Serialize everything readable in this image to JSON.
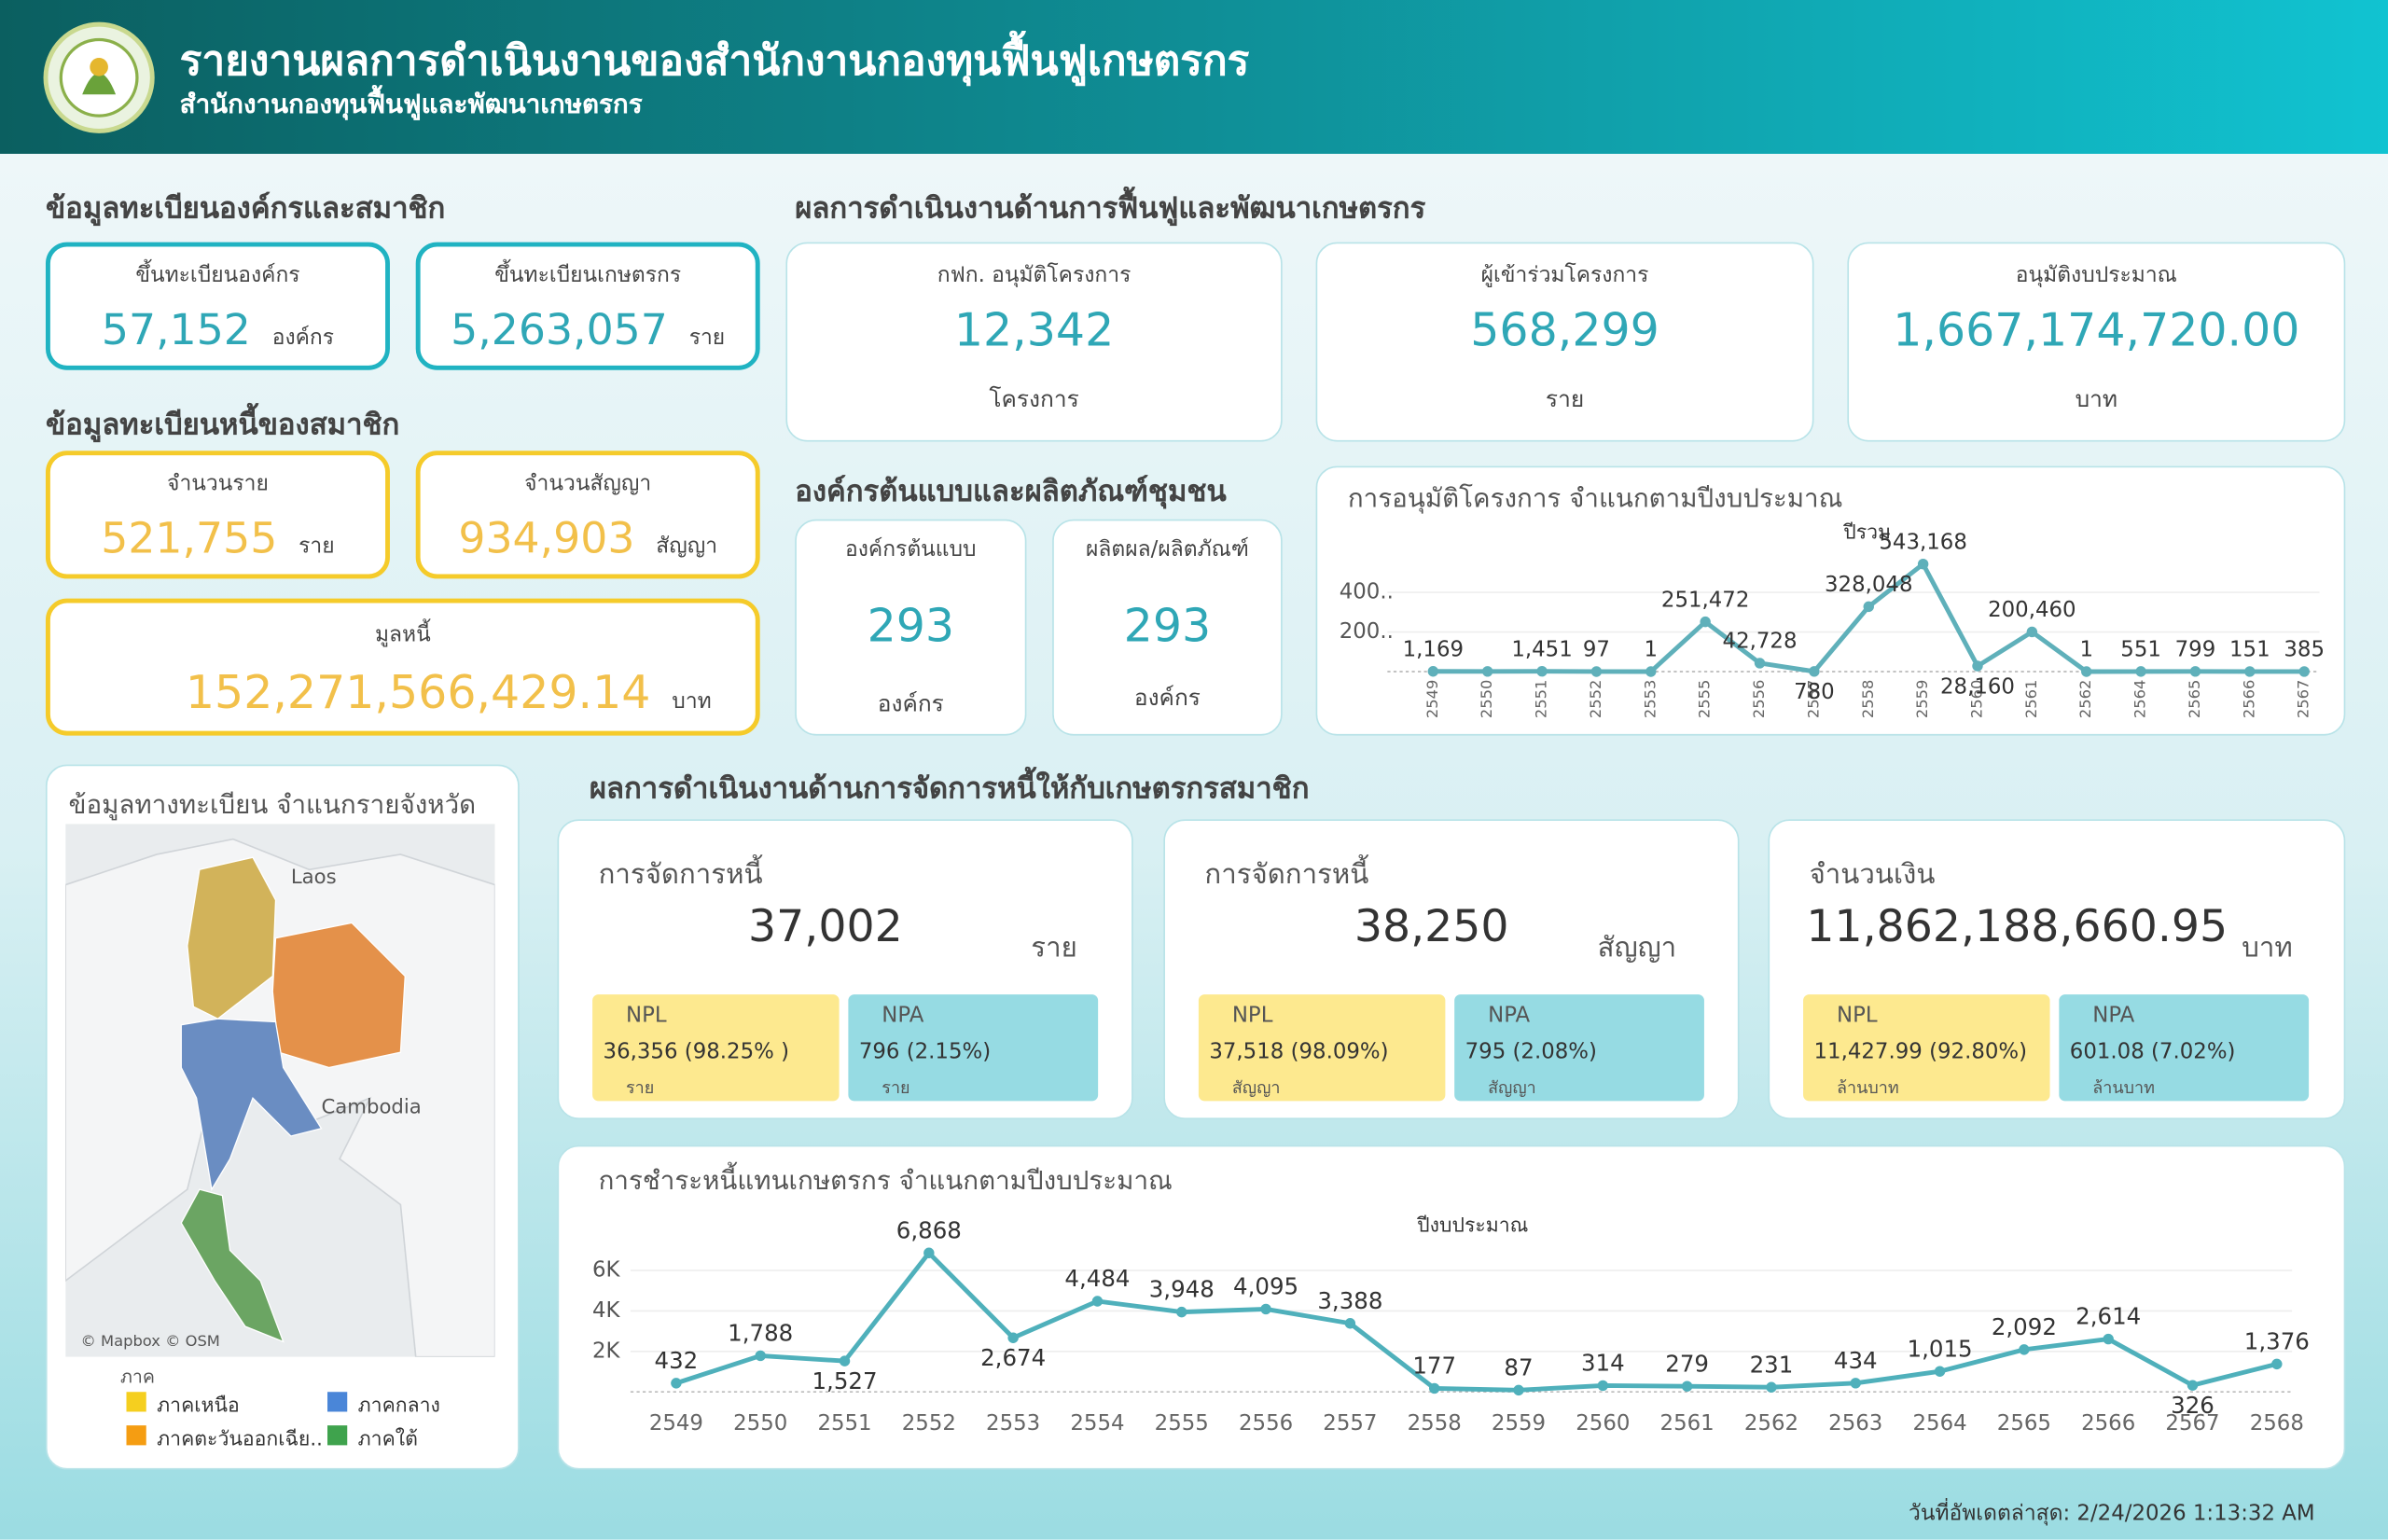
{
  "header": {
    "title": "รายงานผลการดำเนินงานของสำนักงานกองทุนฟื้นฟูเกษตรกร",
    "subtitle": "สำนักงานกองทุนฟื้นฟูและพัฒนาเกษตรกร"
  },
  "registration": {
    "title": "ข้อมูลทะเบียนองค์กรและสมาชิก",
    "cards": [
      {
        "label": "ขึ้นทะเบียนองค์กร",
        "value": "57,152",
        "unit": "องค์กร"
      },
      {
        "label": "ขึ้นทะเบียนเกษตรกร",
        "value": "5,263,057",
        "unit": "ราย"
      }
    ]
  },
  "debt_registry": {
    "title": "ข้อมูลทะเบียนหนี้ของสมาชิก",
    "cards": [
      {
        "label": "จำนวนราย",
        "value": "521,755",
        "unit": "ราย"
      },
      {
        "label": "จำนวนสัญญา",
        "value": "934,903",
        "unit": "สัญญา"
      },
      {
        "label": "มูลหนี้",
        "value": "152,271,566,429.14",
        "unit": "บาท"
      }
    ]
  },
  "rehabilitation": {
    "title": "ผลการดำเนินงานด้านการฟื้นฟูและพัฒนาเกษตรกร",
    "cards": [
      {
        "label": "กฟก. อนุมัติโครงการ",
        "value": "12,342",
        "unit": "โครงการ"
      },
      {
        "label": "ผู้เข้าร่วมโครงการ",
        "value": "568,299",
        "unit": "ราย"
      },
      {
        "label": "อนุมัติงบประมาณ",
        "value": "1,667,174,720.00",
        "unit": "บาท"
      }
    ]
  },
  "model_org": {
    "title": "องค์กรต้นแบบและผลิตภัณฑ์ชุมชน",
    "cards": [
      {
        "label": "องค์กรต้นแบบ",
        "value": "293",
        "unit": "องค์กร"
      },
      {
        "label": "ผลิตผล/ผลิตภัณฑ์",
        "value": "293",
        "unit": "องค์กร"
      }
    ]
  },
  "debt_management": {
    "title": "ผลการดำเนินงานด้านการจัดการหนี้ให้กับเกษตรกรสมาชิก",
    "cards": [
      {
        "label": "การจัดการหนี้",
        "value": "37,002",
        "unit": "ราย",
        "npl": {
          "label": "NPL",
          "value": "36,356 (98.25% )",
          "unit": "ราย"
        },
        "npa": {
          "label": "NPA",
          "value": "796 (2.15%)",
          "unit": "ราย"
        }
      },
      {
        "label": "การจัดการหนี้",
        "value": "38,250",
        "unit": "สัญญา",
        "npl": {
          "label": "NPL",
          "value": "37,518 (98.09%)",
          "unit": "สัญญา"
        },
        "npa": {
          "label": "NPA",
          "value": "795 (2.08%)",
          "unit": "สัญญา"
        }
      },
      {
        "label": "จำนวนเงิน",
        "value": "11,862,188,660.95",
        "unit": "บาท",
        "npl": {
          "label": "NPL",
          "value": "11,427.99 (92.80%)",
          "unit": "ล้านบาท"
        },
        "npa": {
          "label": "NPA",
          "value": "601.08 (7.02%)",
          "unit": "ล้านบาท"
        }
      }
    ]
  },
  "map": {
    "title": "ข้อมูลทางทะเบียน จำแนกรายจังหวัด",
    "labels": [
      "Laos",
      "Cambodia"
    ],
    "credit": "© Mapbox © OSM",
    "legend": {
      "title": "ภาค",
      "items": [
        {
          "name": "ภาคเหนือ",
          "color": "#f5cf1f"
        },
        {
          "name": "ภาคกลาง",
          "color": "#4a86d8"
        },
        {
          "name": "ภาคตะวันออกเฉีย..",
          "color": "#f59d12"
        },
        {
          "name": "ภาคใต้",
          "color": "#3fa34d"
        }
      ]
    }
  },
  "chart_data": [
    {
      "type": "line",
      "title": "การอนุมัติโครงการ จำแนกตามปีงบประมาณ",
      "x_label": "ปีรวม",
      "color": "#5fb0ba",
      "categories": [
        "2549",
        "2550",
        "2551",
        "2552",
        "2553",
        "2555",
        "2556",
        "2557",
        "2558",
        "2559",
        "2560",
        "2561",
        "2562",
        "2564",
        "2565",
        "2566",
        "2567"
      ],
      "values": [
        1169,
        1000,
        1451,
        97,
        1,
        251472,
        42728,
        780,
        328048,
        543168,
        28160,
        200460,
        1,
        551,
        799,
        151,
        385
      ],
      "value_labels": [
        "1,169",
        null,
        "1,451",
        "97",
        "1",
        "251,472",
        "42,728",
        "780",
        "328,048",
        "543,168",
        "28,160",
        "200,460",
        "1",
        "551",
        "799",
        "151",
        "385"
      ],
      "ylim": [
        0,
        600000
      ],
      "yticks": [
        {
          "value": 200000,
          "label": "200.."
        },
        {
          "value": 400000,
          "label": "400.."
        }
      ]
    },
    {
      "type": "line",
      "title": "การชำระหนี้แทนเกษตรกร จำแนกตามปีงบประมาณ",
      "x_label": "ปีงบประมาณ",
      "color": "#4fb0bb",
      "categories": [
        "2549",
        "2550",
        "2551",
        "2552",
        "2553",
        "2554",
        "2555",
        "2556",
        "2557",
        "2558",
        "2559",
        "2560",
        "2561",
        "2562",
        "2563",
        "2564",
        "2565",
        "2566",
        "2567",
        "2568"
      ],
      "values": [
        432,
        1788,
        1527,
        6868,
        2674,
        4484,
        3948,
        4095,
        3388,
        177,
        87,
        314,
        279,
        231,
        434,
        1015,
        2092,
        2614,
        326,
        1376
      ],
      "value_labels": [
        "432",
        "1,788",
        "1,527",
        "6,868",
        "2,674",
        "4,484",
        "3,948",
        "4,095",
        "3,388",
        "177",
        "87",
        "314",
        "279",
        "231",
        "434",
        "1,015",
        "2,092",
        "2,614",
        "326",
        "1,376"
      ],
      "ylim": [
        0,
        7000
      ],
      "yticks": [
        {
          "value": 2000,
          "label": "2K"
        },
        {
          "value": 4000,
          "label": "4K"
        },
        {
          "value": 6000,
          "label": "6K"
        }
      ]
    }
  ],
  "footer": {
    "updated": "วันที่อัพเดตล่าสุด: 2/24/2026 1:13:32 AM"
  }
}
